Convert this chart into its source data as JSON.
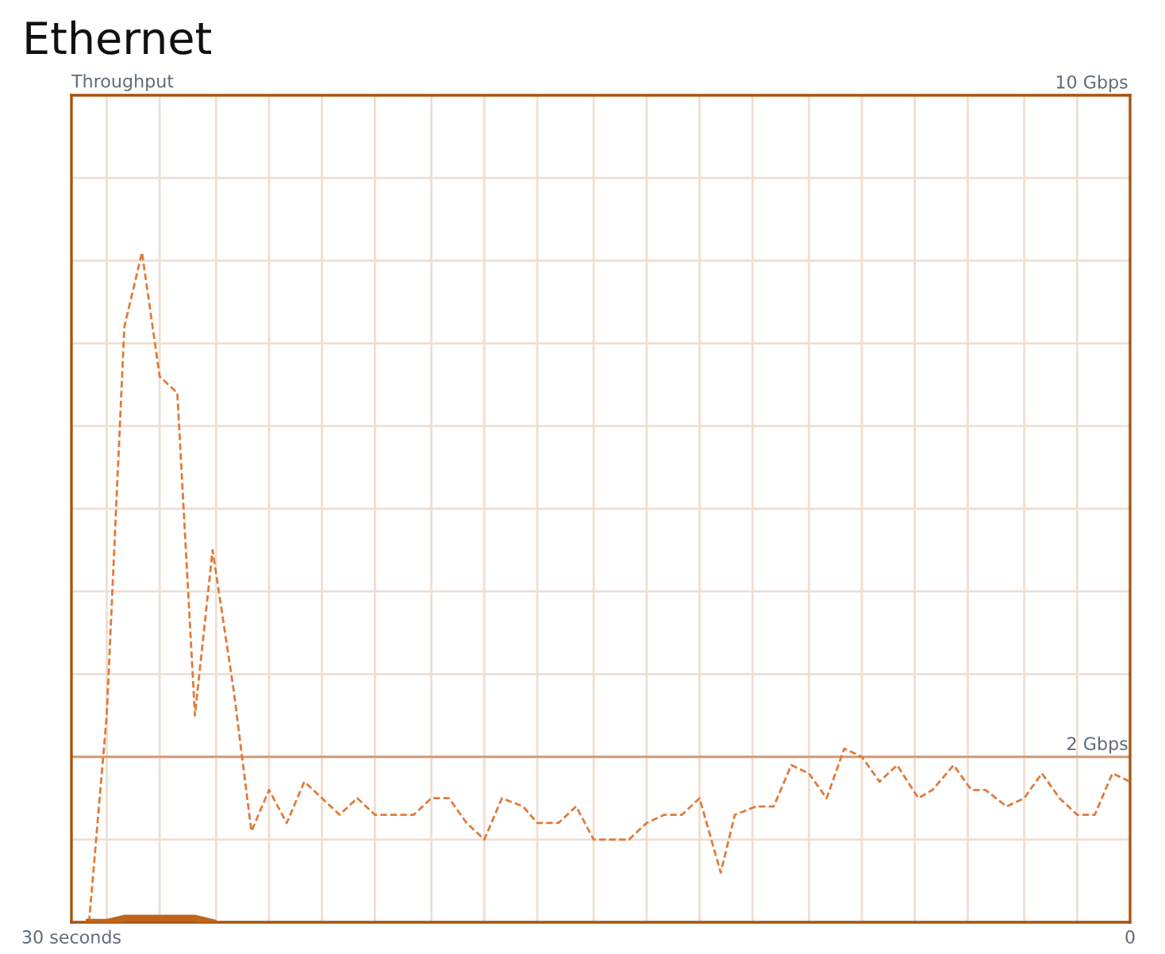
{
  "chart_data": {
    "type": "line",
    "title": "Ethernet",
    "ylabel": "Throughput",
    "series": [
      {
        "type": "line",
        "line_style": "dashed",
        "color": "#e07b39",
        "x": [
          29.5,
          29.0,
          28.5,
          28.0,
          27.5,
          27.0,
          26.5,
          26.0,
          25.4,
          24.9,
          24.4,
          23.9,
          23.4,
          22.9,
          22.4,
          21.9,
          21.4,
          20.3,
          19.8,
          19.3,
          18.8,
          18.3,
          17.8,
          17.2,
          16.8,
          16.2,
          15.7,
          15.2,
          14.7,
          14.2,
          13.7,
          13.2,
          12.7,
          12.2,
          11.6,
          11.2,
          10.6,
          10.1,
          9.6,
          9.1,
          8.6,
          8.1,
          7.6,
          7.1,
          6.6,
          6.0,
          5.6,
          5.0,
          4.5,
          4.1,
          3.5,
          3.0,
          2.5,
          2.0,
          1.5,
          1.0,
          0.5,
          0
        ],
        "values": [
          0,
          2.5,
          7.2,
          8.1,
          6.6,
          6.4,
          2.5,
          4.5,
          2.8,
          1.1,
          1.6,
          1.2,
          1.7,
          1.5,
          1.3,
          1.5,
          1.3,
          1.3,
          1.5,
          1.5,
          1.2,
          1.0,
          1.5,
          1.4,
          1.2,
          1.2,
          1.4,
          1.0,
          1.0,
          1.0,
          1.2,
          1.3,
          1.3,
          1.5,
          0.6,
          1.3,
          1.4,
          1.4,
          1.9,
          1.8,
          1.5,
          2.1,
          2.0,
          1.7,
          1.9,
          1.5,
          1.6,
          1.9,
          1.6,
          1.6,
          1.4,
          1.5,
          1.8,
          1.5,
          1.3,
          1.3,
          1.8,
          1.7
        ]
      },
      {
        "type": "line",
        "line_style": "solid",
        "color": "#c0641c",
        "x": [
          29.5,
          29.0,
          28.5,
          28.0,
          27.5,
          27.0,
          26.5,
          26.0
        ],
        "values": [
          0,
          0,
          0.05,
          0.05,
          0.05,
          0.05,
          0.05,
          0
        ]
      }
    ],
    "xlim": [
      30,
      0
    ],
    "xticks": [
      {
        "value": 30,
        "label": "30 seconds"
      },
      {
        "value": 29.0,
        "label": null
      },
      {
        "value": 27.5,
        "label": null
      },
      {
        "value": 25.9,
        "label": null
      },
      {
        "value": 24.4,
        "label": null
      },
      {
        "value": 22.9,
        "label": null
      },
      {
        "value": 21.4,
        "label": null
      },
      {
        "value": 19.8,
        "label": null
      },
      {
        "value": 18.3,
        "label": null
      },
      {
        "value": 16.8,
        "label": null
      },
      {
        "value": 15.2,
        "label": null
      },
      {
        "value": 13.7,
        "label": null
      },
      {
        "value": 12.2,
        "label": null
      },
      {
        "value": 10.7,
        "label": null
      },
      {
        "value": 9.1,
        "label": null
      },
      {
        "value": 7.6,
        "label": null
      },
      {
        "value": 6.1,
        "label": null
      },
      {
        "value": 4.6,
        "label": null
      },
      {
        "value": 3.0,
        "label": null
      },
      {
        "value": 1.5,
        "label": null
      },
      {
        "value": 0,
        "label": "0"
      }
    ],
    "ylim": [
      0,
      10
    ],
    "yticks": [
      {
        "value": 0,
        "label": null
      },
      {
        "value": 1,
        "label": null
      },
      {
        "value": 2,
        "label": "2 Gbps"
      },
      {
        "value": 3,
        "label": null
      },
      {
        "value": 4,
        "label": null
      },
      {
        "value": 5,
        "label": null
      },
      {
        "value": 6,
        "label": null
      },
      {
        "value": 7,
        "label": null
      },
      {
        "value": 8,
        "label": null
      },
      {
        "value": 9,
        "label": null
      },
      {
        "value": 10,
        "label": "10 Gbps"
      }
    ],
    "ref_lines": [
      {
        "axis": "y",
        "value": 2,
        "color": "#d4a07a"
      }
    ],
    "grid": true
  }
}
